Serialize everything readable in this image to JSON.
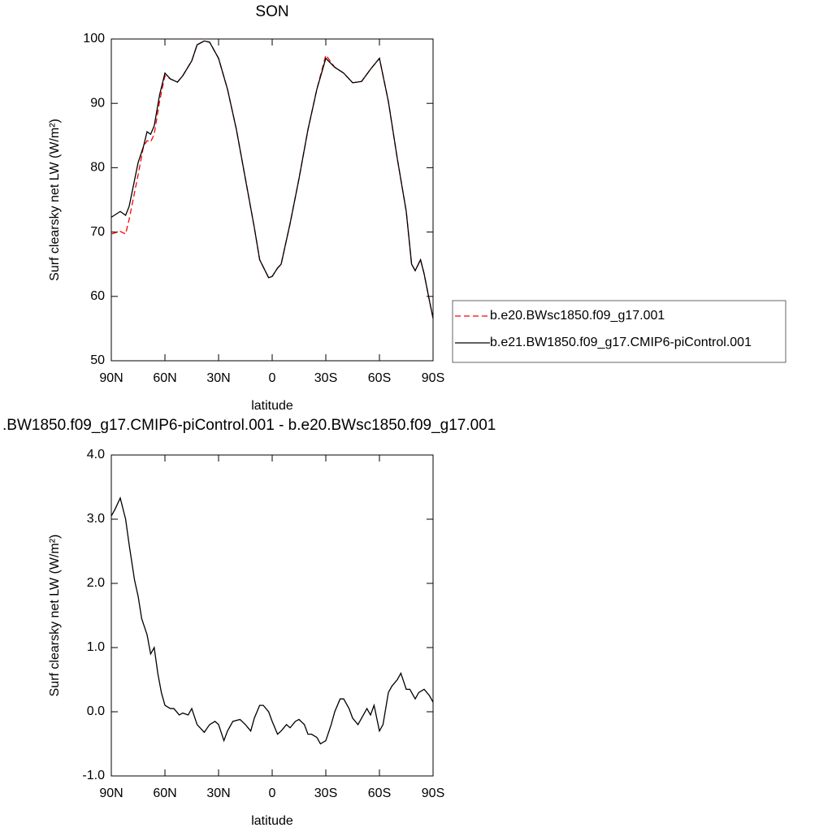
{
  "chart_data": [
    {
      "type": "line",
      "title": "SON",
      "x_label": "latitude",
      "y_label": "Surf clearsky net LW (W/m²)",
      "xlim": [
        90,
        -90
      ],
      "xticks": [
        {
          "value": 90,
          "label": "90N"
        },
        {
          "value": 60,
          "label": "60N"
        },
        {
          "value": 30,
          "label": "30N"
        },
        0,
        {
          "value": -30,
          "label": "30S"
        },
        {
          "value": -60,
          "label": "60S"
        },
        {
          "value": -90,
          "label": "90S"
        }
      ],
      "ylim": [
        50,
        100
      ],
      "yticks": [
        50,
        60,
        70,
        80,
        90,
        100
      ],
      "legend": "right",
      "x": [
        90,
        85,
        82,
        80,
        75,
        72,
        70,
        68,
        66,
        63,
        60,
        57,
        53,
        50,
        45,
        42,
        38,
        35,
        30,
        25,
        20,
        15,
        10,
        7,
        2,
        0,
        -3,
        -5,
        -10,
        -15,
        -20,
        -25,
        -30,
        -35,
        -40,
        -45,
        -50,
        -55,
        -60,
        -65,
        -70,
        -75,
        -78,
        -80,
        -83,
        -85,
        -88,
        -90
      ],
      "series": [
        {
          "name": "b.e20.BWsc1850.f09_g17.001",
          "color": "#ff0000",
          "line_style": "dashed",
          "values": [
            69.7,
            70.1,
            69.7,
            72.0,
            78.9,
            83.3,
            84.2,
            84.0,
            85.2,
            90.3,
            94.3,
            93.8,
            93.3,
            94.3,
            96.6,
            99.1,
            99.7,
            99.5,
            97.0,
            92.2,
            85.9,
            78.3,
            70.7,
            65.7,
            62.9,
            63.1,
            64.4,
            65.0,
            71.3,
            78.3,
            85.9,
            92.2,
            97.5,
            95.6,
            94.7,
            93.2,
            93.4,
            95.3,
            97.0,
            90.3,
            81.4,
            73.2,
            65.0,
            64.0,
            65.7,
            63.5,
            59.3,
            56.6
          ]
        },
        {
          "name": "b.e21.BW1850.f09_g17.CMIP6-piControl.001",
          "color": "#000000",
          "line_style": "solid",
          "values": [
            72.3,
            73.2,
            72.6,
            74.0,
            80.8,
            83.3,
            85.6,
            85.2,
            86.5,
            91.3,
            94.7,
            93.8,
            93.3,
            94.3,
            96.6,
            99.1,
            99.7,
            99.5,
            97.0,
            92.2,
            85.9,
            78.3,
            70.7,
            65.7,
            62.9,
            63.1,
            64.4,
            65.0,
            71.3,
            78.3,
            85.9,
            92.2,
            97.0,
            95.6,
            94.7,
            93.2,
            93.4,
            95.3,
            97.0,
            90.3,
            81.4,
            73.2,
            65.0,
            64.0,
            65.7,
            63.5,
            59.3,
            56.6
          ]
        }
      ]
    },
    {
      "type": "line",
      "title": ".BW1850.f09_g17.CMIP6-piControl.001 - b.e20.BWsc1850.f09_g17.001",
      "x_label": "latitude",
      "y_label": "Surf clearsky net LW (W/m²)",
      "xlim": [
        90,
        -90
      ],
      "xticks": [
        {
          "value": 90,
          "label": "90N"
        },
        {
          "value": 60,
          "label": "60N"
        },
        {
          "value": 30,
          "label": "30N"
        },
        0,
        {
          "value": -30,
          "label": "30S"
        },
        {
          "value": -60,
          "label": "60S"
        },
        {
          "value": -90,
          "label": "90S"
        }
      ],
      "ylim": [
        -1,
        4
      ],
      "yticks": [
        {
          "value": -1,
          "label": "-1.0"
        },
        {
          "value": 0,
          "label": "0.0"
        },
        {
          "value": 1,
          "label": "1.0"
        },
        {
          "value": 2,
          "label": "2.0"
        },
        {
          "value": 3,
          "label": "3.0"
        },
        {
          "value": 4,
          "label": "4.0"
        }
      ],
      "x": [
        90,
        88,
        85,
        82,
        80,
        77,
        75,
        73,
        70,
        68,
        66,
        64,
        62,
        60,
        57,
        55,
        52,
        50,
        47,
        45,
        42,
        38,
        35,
        32,
        30,
        27,
        25,
        22,
        18,
        15,
        12,
        10,
        7,
        5,
        2,
        0,
        -3,
        -5,
        -8,
        -10,
        -13,
        -15,
        -18,
        -20,
        -22,
        -25,
        -27,
        -30,
        -33,
        -35,
        -38,
        -40,
        -43,
        -45,
        -48,
        -50,
        -53,
        -55,
        -57,
        -60,
        -62,
        -65,
        -67,
        -70,
        -72,
        -75,
        -77,
        -80,
        -82,
        -85,
        -88,
        -90
      ],
      "color": "#000000",
      "values": [
        3.05,
        3.15,
        3.33,
        3.0,
        2.6,
        2.05,
        1.8,
        1.45,
        1.2,
        0.9,
        1.0,
        0.6,
        0.3,
        0.1,
        0.05,
        0.05,
        -0.05,
        -0.02,
        -0.05,
        0.05,
        -0.2,
        -0.32,
        -0.2,
        -0.15,
        -0.2,
        -0.45,
        -0.3,
        -0.15,
        -0.12,
        -0.2,
        -0.3,
        -0.1,
        0.1,
        0.1,
        0.0,
        -0.15,
        -0.35,
        -0.3,
        -0.2,
        -0.25,
        -0.15,
        -0.12,
        -0.2,
        -0.35,
        -0.35,
        -0.4,
        -0.5,
        -0.45,
        -0.2,
        0.0,
        0.2,
        0.2,
        0.05,
        -0.1,
        -0.2,
        -0.1,
        0.05,
        -0.05,
        0.1,
        -0.3,
        -0.2,
        0.3,
        0.4,
        0.5,
        0.6,
        0.35,
        0.35,
        0.2,
        0.3,
        0.35,
        0.25,
        0.15
      ]
    }
  ]
}
